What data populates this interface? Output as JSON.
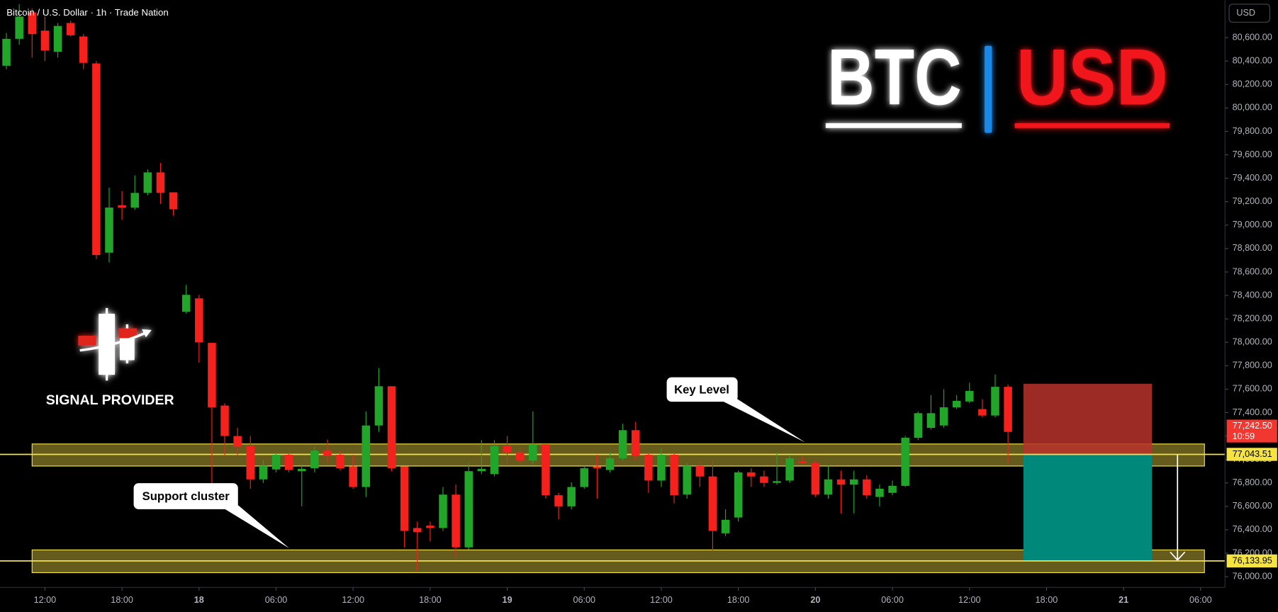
{
  "chart_data": {
    "type": "candlestick",
    "title": "Bitcoin / U.S. Dollar · 1h · Trade Nation",
    "currency_button": "USD",
    "logo": {
      "base": "BTC",
      "quote": "USD"
    },
    "brand": "SIGNAL PROVIDER",
    "annotations": [
      {
        "text": "Key Level"
      },
      {
        "text": "Support cluster"
      }
    ],
    "up_color": "#22a629",
    "down_color": "#f5211c",
    "x": [
      -3,
      -2,
      -1,
      0,
      1,
      2,
      3,
      4,
      5,
      6,
      7,
      8,
      9,
      10,
      11,
      12,
      13,
      14,
      15,
      16,
      17,
      18,
      19,
      20,
      21,
      22,
      23,
      24,
      25,
      26,
      27,
      28,
      29,
      30,
      31,
      32,
      33,
      34,
      35,
      36,
      37,
      38,
      39,
      40,
      41,
      42,
      43,
      44,
      45,
      46,
      47,
      48,
      49,
      50,
      51,
      52,
      53,
      54,
      55,
      56,
      57,
      58,
      59,
      60,
      61,
      62,
      63,
      64,
      65,
      66,
      67,
      68,
      69,
      70,
      71,
      72,
      73,
      74,
      75
    ],
    "open": [
      80360,
      80590,
      80815,
      80660,
      80480,
      80725,
      80610,
      80380,
      78765,
      79170,
      79150,
      79275,
      79450,
      79280,
      78260,
      78375,
      77995,
      77460,
      77200,
      77115,
      76830,
      76915,
      77040,
      76900,
      76925,
      77075,
      77040,
      76940,
      76765,
      77290,
      77625,
      76940,
      76415,
      76435,
      76415,
      76700,
      76250,
      76900,
      76875,
      77115,
      77060,
      76990,
      77130,
      76695,
      76600,
      76765,
      76940,
      76910,
      77010,
      77250,
      77040,
      76820,
      77040,
      76700,
      76945,
      76855,
      76370,
      76505,
      76890,
      76855,
      76800,
      76820,
      76985,
      76970,
      76700,
      76830,
      76785,
      76830,
      76680,
      76715,
      76775,
      77185,
      77270,
      77290,
      77445,
      77495,
      77430,
      77375,
      77620
    ],
    "high": [
      80640,
      80885,
      80850,
      80780,
      80725,
      80745,
      80630,
      80400,
      79320,
      79290,
      79425,
      79475,
      79530,
      79280,
      78490,
      78405,
      77995,
      77480,
      77270,
      77200,
      76995,
      77060,
      77060,
      76960,
      77110,
      77170,
      77075,
      77040,
      77410,
      77780,
      77625,
      76940,
      76470,
      76470,
      76765,
      76785,
      76970,
      77165,
      77165,
      77200,
      77110,
      77410,
      77130,
      76715,
      76805,
      76945,
      77040,
      77060,
      77305,
      77320,
      77060,
      77095,
      77060,
      76970,
      76995,
      76995,
      76575,
      76905,
      76925,
      76905,
      77060,
      77040,
      77025,
      76990,
      76945,
      76905,
      76905,
      76865,
      76785,
      76820,
      77200,
      77410,
      77550,
      77600,
      77550,
      77655,
      77515,
      77725,
      77640
    ],
    "low": [
      80330,
      80540,
      80430,
      80400,
      80430,
      80610,
      80330,
      78710,
      78680,
      79045,
      79130,
      79255,
      79180,
      79080,
      78245,
      77825,
      76750,
      77030,
      77030,
      76750,
      76800,
      76890,
      76890,
      76600,
      76890,
      76975,
      76905,
      76750,
      76680,
      77235,
      76900,
      76250,
      76055,
      76300,
      76390,
      76160,
      76230,
      76875,
      76855,
      76960,
      76960,
      76960,
      76665,
      76490,
      76575,
      76750,
      76665,
      76890,
      76990,
      76990,
      76715,
      76765,
      76625,
      76665,
      76765,
      76210,
      76345,
      76470,
      76765,
      76765,
      76785,
      76800,
      76960,
      76680,
      76665,
      76540,
      76540,
      76665,
      76600,
      76695,
      76765,
      77165,
      77255,
      77270,
      77430,
      77480,
      77360,
      77360,
      76970
    ],
    "close": [
      80590,
      80780,
      80630,
      80490,
      80700,
      80620,
      80385,
      78745,
      79150,
      79150,
      79275,
      79450,
      79275,
      79135,
      78405,
      78000,
      77445,
      77200,
      77110,
      76830,
      76945,
      77040,
      76910,
      76920,
      77075,
      77030,
      76925,
      76765,
      77290,
      77625,
      76925,
      76390,
      76380,
      76415,
      76700,
      76250,
      76900,
      76920,
      77115,
      77060,
      76990,
      77130,
      76695,
      76600,
      76765,
      76925,
      76925,
      77010,
      77250,
      77030,
      76820,
      77040,
      76695,
      76945,
      76855,
      76390,
      76485,
      76890,
      76855,
      76800,
      76815,
      77010,
      76970,
      76700,
      76830,
      76785,
      76830,
      76695,
      76750,
      76775,
      77185,
      77395,
      77395,
      77445,
      77500,
      77585,
      77375,
      77620,
      77235
    ],
    "xlim": [
      -3.5,
      91.9
    ],
    "ylim": [
      75915,
      80920
    ],
    "xticks": [
      {
        "value": 0,
        "label": "12:00"
      },
      {
        "value": 6,
        "label": "18:00"
      },
      {
        "value": 12,
        "label": "18"
      },
      {
        "value": 18,
        "label": "06:00"
      },
      {
        "value": 24,
        "label": "12:00"
      },
      {
        "value": 30,
        "label": "18:00"
      },
      {
        "value": 36,
        "label": "19"
      },
      {
        "value": 42,
        "label": "06:00"
      },
      {
        "value": 48,
        "label": "12:00"
      },
      {
        "value": 54,
        "label": "18:00"
      },
      {
        "value": 60,
        "label": "20"
      },
      {
        "value": 66,
        "label": "06:00"
      },
      {
        "value": 72,
        "label": "12:00"
      },
      {
        "value": 78,
        "label": "18:00"
      },
      {
        "value": 84,
        "label": "21"
      },
      {
        "value": 90,
        "label": "06:00"
      }
    ],
    "yticks": [
      {
        "value": 76000,
        "label": "76,000.00"
      },
      {
        "value": 76200,
        "label": "76,200.00"
      },
      {
        "value": 76400,
        "label": "76,400.00"
      },
      {
        "value": 76600,
        "label": "76,600.00"
      },
      {
        "value": 76800,
        "label": "76,800.00"
      },
      {
        "value": 77000,
        "label": "77,000.00"
      },
      {
        "value": 77200,
        "label": "77,200.00"
      },
      {
        "value": 77400,
        "label": "77,400.00"
      },
      {
        "value": 77600,
        "label": "77,600.00"
      },
      {
        "value": 77800,
        "label": "77,800.00"
      },
      {
        "value": 78000,
        "label": "78,000.00"
      },
      {
        "value": 78200,
        "label": "78,200.00"
      },
      {
        "value": 78400,
        "label": "78,400.00"
      },
      {
        "value": 78600,
        "label": "78,600.00"
      },
      {
        "value": 78800,
        "label": "78,800.00"
      },
      {
        "value": 79000,
        "label": "79,000.00"
      },
      {
        "value": 79200,
        "label": "79,200.00"
      },
      {
        "value": 79400,
        "label": "79,400.00"
      },
      {
        "value": 79600,
        "label": "79,600.00"
      },
      {
        "value": 79800,
        "label": "79,800.00"
      },
      {
        "value": 80000,
        "label": "80,000.00"
      },
      {
        "value": 80200,
        "label": "80,200.00"
      },
      {
        "value": 80400,
        "label": "80,400.00"
      },
      {
        "value": 80600,
        "label": "80,600.00"
      }
    ],
    "zone_color": "#a8972f",
    "level_color": "#f5e342",
    "zones": [
      {
        "range": [
          76944,
          77132
        ],
        "x": [
          -1,
          90.3
        ]
      },
      {
        "range": [
          76034,
          76228
        ],
        "x": [
          -1,
          90.3
        ]
      }
    ],
    "levels": [
      {
        "value": 77043.51,
        "label": "77,043.51"
      },
      {
        "value": 76133.95,
        "label": "76,133.95"
      }
    ],
    "last_price": {
      "value": 77242.5,
      "label": "77,242.50",
      "countdown": "10:59",
      "color": "#f23630"
    },
    "position": {
      "x": [
        76.2,
        86.2
      ],
      "stop": 77646,
      "arrow_x": 88.2,
      "stop_color": "#b8332c",
      "target_color": "#00897b"
    }
  }
}
